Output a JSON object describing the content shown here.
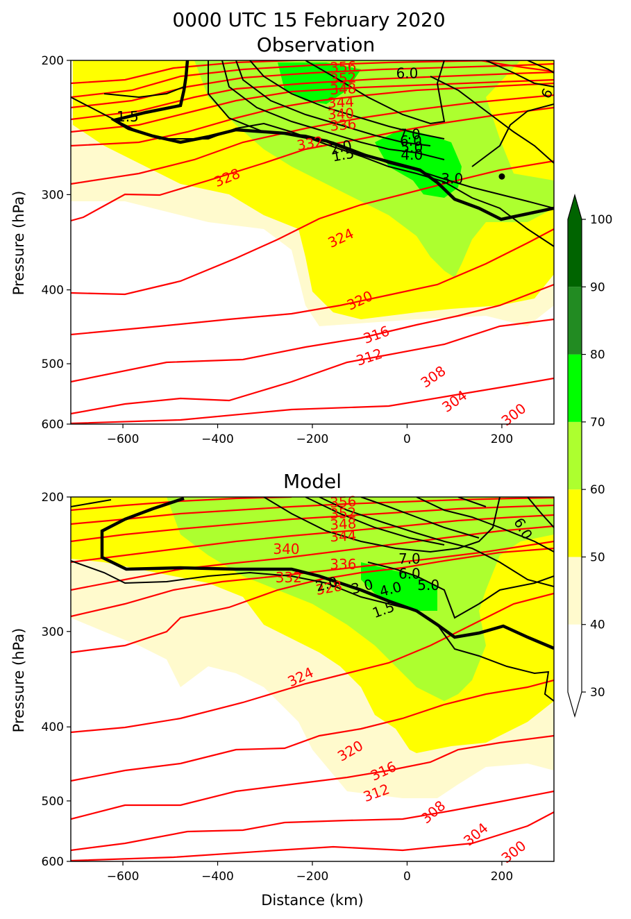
{
  "figure": {
    "title_line1": "0000 UTC 15 February 2020",
    "title_line2": "Observation"
  },
  "colors": {
    "fill_40_50": "#fffacd",
    "fill_50_60": "#ffff00",
    "fill_60_70": "#adff2f",
    "fill_70_80": "#00ff00",
    "fill_80_90": "#228b22",
    "fill_90_100": "#006400",
    "theta_contour": "#ff0000",
    "pv_contour": "#000000"
  },
  "colorbar": {
    "ticks": [
      30,
      40,
      50,
      60,
      70,
      80,
      90,
      100
    ],
    "levels": [
      30,
      40,
      50,
      60,
      70,
      80,
      90,
      100
    ],
    "extend": "both"
  },
  "chart_data": [
    {
      "type": "contour",
      "title": "Observation",
      "xlabel": "",
      "ylabel": "Pressure (hPa)",
      "xlim": [
        -710,
        310
      ],
      "ylim": [
        600,
        200
      ],
      "xticks": [
        -600,
        -400,
        -200,
        0,
        200
      ],
      "xtick_labels": [
        "−600",
        "−400",
        "−200",
        "0",
        "200"
      ],
      "yticks": [
        200,
        300,
        400,
        500,
        600
      ],
      "theta_labels": [
        {
          "text": "328",
          "x": -380,
          "y": 285,
          "rot": -22
        },
        {
          "text": "332",
          "x": -205,
          "y": 257,
          "rot": -10
        },
        {
          "text": "336",
          "x": -135,
          "y": 243,
          "rot": -5
        },
        {
          "text": "340",
          "x": -140,
          "y": 235,
          "rot": -3
        },
        {
          "text": "344",
          "x": -140,
          "y": 227,
          "rot": -3
        },
        {
          "text": "348",
          "x": -135,
          "y": 218,
          "rot": -3
        },
        {
          "text": "352",
          "x": -135,
          "y": 211,
          "rot": -3
        },
        {
          "text": "356",
          "x": -135,
          "y": 204,
          "rot": -3
        },
        {
          "text": "324",
          "x": -140,
          "y": 342,
          "rot": -25
        },
        {
          "text": "320",
          "x": -100,
          "y": 413,
          "rot": -25
        },
        {
          "text": "316",
          "x": -65,
          "y": 458,
          "rot": -20
        },
        {
          "text": "312",
          "x": -80,
          "y": 490,
          "rot": -18
        },
        {
          "text": "308",
          "x": 55,
          "y": 520,
          "rot": -35
        },
        {
          "text": "304",
          "x": 100,
          "y": 560,
          "rot": -35
        },
        {
          "text": "300",
          "x": 225,
          "y": 583,
          "rot": -38
        }
      ],
      "pv_labels": [
        {
          "text": "1.5",
          "x": -590,
          "y": 237,
          "rot": 0
        },
        {
          "text": "6.0",
          "x": 0,
          "y": 208,
          "rot": 0
        },
        {
          "text": "6",
          "x": 295,
          "y": 221,
          "rot": -60
        },
        {
          "text": "7.0",
          "x": 5,
          "y": 250,
          "rot": 0
        },
        {
          "text": "6.0",
          "x": 8,
          "y": 255,
          "rot": 0
        },
        {
          "text": "5.0",
          "x": 10,
          "y": 260,
          "rot": 0
        },
        {
          "text": "4.0",
          "x": 10,
          "y": 266,
          "rot": 0
        },
        {
          "text": "3.0",
          "x": 95,
          "y": 286,
          "rot": 0
        },
        {
          "text": "2.0",
          "x": -140,
          "y": 260,
          "rot": -15
        },
        {
          "text": "1.5",
          "x": -135,
          "y": 266,
          "rot": -10
        }
      ],
      "markers": [
        {
          "x": 200,
          "y": 284
        }
      ]
    },
    {
      "type": "contour",
      "title": "Model",
      "xlabel": "Distance (km)",
      "ylabel": "Pressure (hPa)",
      "xlim": [
        -710,
        310
      ],
      "ylim": [
        600,
        200
      ],
      "xticks": [
        -600,
        -400,
        -200,
        0,
        200
      ],
      "xtick_labels": [
        "−600",
        "−400",
        "−200",
        "0",
        "200"
      ],
      "yticks": [
        200,
        300,
        400,
        500,
        600
      ],
      "theta_labels": [
        {
          "text": "356",
          "x": -135,
          "y": 203,
          "rot": -3
        },
        {
          "text": "352",
          "x": -135,
          "y": 210,
          "rot": -3
        },
        {
          "text": "348",
          "x": -135,
          "y": 217,
          "rot": -3
        },
        {
          "text": "344",
          "x": -135,
          "y": 225,
          "rot": -3
        },
        {
          "text": "340",
          "x": -255,
          "y": 234,
          "rot": 0
        },
        {
          "text": "336",
          "x": -135,
          "y": 245,
          "rot": 0
        },
        {
          "text": "332",
          "x": -250,
          "y": 255,
          "rot": 0
        },
        {
          "text": "328",
          "x": -165,
          "y": 263,
          "rot": -10
        },
        {
          "text": "324",
          "x": -225,
          "y": 344,
          "rot": -25
        },
        {
          "text": "320",
          "x": -120,
          "y": 430,
          "rot": -30
        },
        {
          "text": "316",
          "x": -50,
          "y": 457,
          "rot": -25
        },
        {
          "text": "312",
          "x": -65,
          "y": 488,
          "rot": -20
        },
        {
          "text": "308",
          "x": 55,
          "y": 517,
          "rot": -40
        },
        {
          "text": "304",
          "x": 145,
          "y": 553,
          "rot": -40
        },
        {
          "text": "300",
          "x": 225,
          "y": 583,
          "rot": -38
        }
      ],
      "pv_labels": [
        {
          "text": "7.0",
          "x": 5,
          "y": 241,
          "rot": 0
        },
        {
          "text": "6.0",
          "x": 5,
          "y": 252,
          "rot": 0
        },
        {
          "text": "5.0",
          "x": 45,
          "y": 261,
          "rot": 0
        },
        {
          "text": "4.0",
          "x": -35,
          "y": 264,
          "rot": -15
        },
        {
          "text": "3.0",
          "x": -95,
          "y": 262,
          "rot": -15
        },
        {
          "text": "2.0",
          "x": -170,
          "y": 260,
          "rot": -15
        },
        {
          "text": "1.5",
          "x": -50,
          "y": 281,
          "rot": -20
        },
        {
          "text": "6.0",
          "x": 245,
          "y": 220,
          "rot": 60
        }
      ],
      "markers": []
    }
  ]
}
